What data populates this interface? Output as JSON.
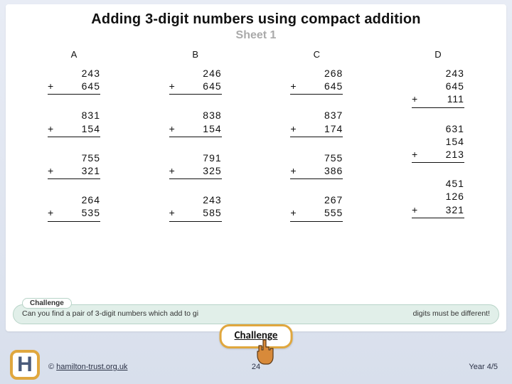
{
  "title": "Adding 3-digit numbers using compact addition",
  "subtitle": "Sheet 1",
  "columns": [
    {
      "label": "A",
      "problems": [
        {
          "nums": [
            "243",
            "645"
          ],
          "op": "+"
        },
        {
          "nums": [
            "831",
            "154"
          ],
          "op": "+"
        },
        {
          "nums": [
            "755",
            "321"
          ],
          "op": "+"
        },
        {
          "nums": [
            "264",
            "535"
          ],
          "op": "+"
        }
      ]
    },
    {
      "label": "B",
      "problems": [
        {
          "nums": [
            "246",
            "645"
          ],
          "op": "+"
        },
        {
          "nums": [
            "838",
            "154"
          ],
          "op": "+"
        },
        {
          "nums": [
            "791",
            "325"
          ],
          "op": "+"
        },
        {
          "nums": [
            "243",
            "585"
          ],
          "op": "+"
        }
      ]
    },
    {
      "label": "C",
      "problems": [
        {
          "nums": [
            "268",
            "645"
          ],
          "op": "+"
        },
        {
          "nums": [
            "837",
            "174"
          ],
          "op": "+"
        },
        {
          "nums": [
            "755",
            "386"
          ],
          "op": "+"
        },
        {
          "nums": [
            "267",
            "555"
          ],
          "op": "+"
        }
      ]
    },
    {
      "label": "D",
      "problems": [
        {
          "nums": [
            "243",
            "645",
            "111"
          ],
          "op": "+"
        },
        {
          "nums": [
            "631",
            "154",
            "213"
          ],
          "op": "+"
        },
        {
          "nums": [
            "451",
            "126",
            "321"
          ],
          "op": "+"
        }
      ]
    }
  ],
  "challenge": {
    "pill": "Challenge",
    "text_left": "Can you find a pair of 3-digit numbers which add to gi",
    "text_right": "digits must be different!"
  },
  "overlay_button": "Challenge",
  "footer": {
    "copyright_prefix": "© ",
    "copyright_link": "hamilton-trust.org.uk",
    "page": "24",
    "year": "Year 4/5"
  },
  "colors": {
    "page_gradient_top": "#e8ecf5",
    "page_gradient_bottom": "#d8dfec",
    "worksheet_bg": "#ffffff",
    "accent_border": "#e0a73e",
    "challenge_bg": "#e1efe9",
    "challenge_border": "#b8d4c8",
    "pointer_fill": "#d88a3a",
    "pointer_outline": "#5a3a1a"
  }
}
